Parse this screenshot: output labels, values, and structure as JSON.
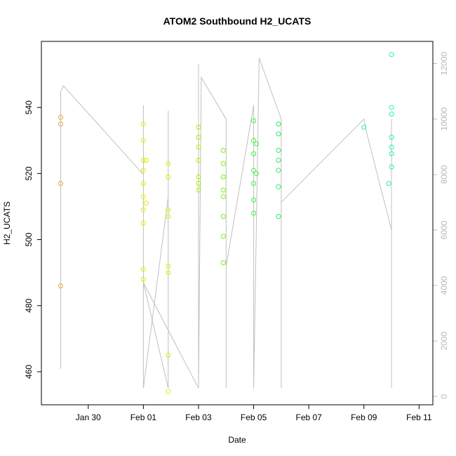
{
  "chart_data": {
    "type": "scatter",
    "title": "ATOM2 Southbound H2_UCATS",
    "xlabel": "Date",
    "ylabel": "H2_UCATS",
    "x_ticks": [
      {
        "label": "Jan 30",
        "day": 30
      },
      {
        "label": "Feb 01",
        "day": 32
      },
      {
        "label": "Feb 03",
        "day": 34
      },
      {
        "label": "Feb 05",
        "day": 36
      },
      {
        "label": "Feb 07",
        "day": 38
      },
      {
        "label": "Feb 09",
        "day": 40
      },
      {
        "label": "Feb 11",
        "day": 42
      }
    ],
    "x_unit": "day of year 2017 (Jan 30 = 30)",
    "xlim": [
      28.3,
      42.5
    ],
    "y_ticks": [
      460,
      480,
      500,
      520,
      540
    ],
    "ylim": [
      450,
      560
    ],
    "y2_label": "",
    "y2_ticks": [
      0,
      2000,
      4000,
      6000,
      8000,
      10000,
      12000
    ],
    "y2lim": [
      -300,
      12800
    ],
    "series": [
      {
        "color": "#f0a040",
        "points": [
          [
            29.0,
            537
          ],
          [
            29.0,
            535
          ],
          [
            29.0,
            517
          ],
          [
            29.0,
            486
          ]
        ]
      },
      {
        "color": "#e6e600",
        "points": [
          [
            32.0,
            535
          ],
          [
            32.0,
            530
          ],
          [
            32.0,
            524
          ],
          [
            32.0,
            521
          ],
          [
            32.0,
            517
          ],
          [
            32.0,
            513
          ],
          [
            32.0,
            509
          ],
          [
            32.0,
            505
          ],
          [
            32.0,
            491
          ],
          [
            32.0,
            488
          ],
          [
            32.1,
            524
          ],
          [
            32.1,
            511
          ]
        ]
      },
      {
        "color": "#d4f000",
        "points": [
          [
            32.9,
            523
          ],
          [
            32.9,
            519
          ],
          [
            32.9,
            509
          ],
          [
            32.9,
            507
          ],
          [
            32.9,
            492
          ],
          [
            32.9,
            490
          ],
          [
            32.9,
            465
          ],
          [
            32.9,
            454
          ]
        ]
      },
      {
        "color": "#a8f000",
        "points": [
          [
            34.0,
            534
          ],
          [
            34.0,
            531
          ],
          [
            34.0,
            528
          ],
          [
            34.0,
            524
          ],
          [
            34.0,
            519
          ],
          [
            34.0,
            517
          ],
          [
            34.0,
            515
          ]
        ]
      },
      {
        "color": "#78f000",
        "points": [
          [
            34.9,
            527
          ],
          [
            34.9,
            523
          ],
          [
            34.9,
            519
          ],
          [
            34.9,
            515
          ],
          [
            34.9,
            513
          ],
          [
            34.9,
            507
          ],
          [
            34.9,
            501
          ],
          [
            34.9,
            493
          ]
        ]
      },
      {
        "color": "#40f040",
        "points": [
          [
            36.0,
            536
          ],
          [
            36.0,
            530
          ],
          [
            36.0,
            526
          ],
          [
            36.0,
            521
          ],
          [
            36.0,
            517
          ],
          [
            36.0,
            512
          ],
          [
            36.0,
            508
          ],
          [
            36.1,
            520
          ],
          [
            36.1,
            529
          ]
        ]
      },
      {
        "color": "#20f060",
        "points": [
          [
            36.9,
            535
          ],
          [
            36.9,
            532
          ],
          [
            36.9,
            527
          ],
          [
            36.9,
            524
          ],
          [
            36.9,
            521
          ],
          [
            36.9,
            516
          ],
          [
            36.9,
            507
          ]
        ]
      },
      {
        "color": "#20f0b0",
        "points": [
          [
            41.0,
            556
          ],
          [
            41.0,
            540
          ],
          [
            41.0,
            538
          ],
          [
            41.0,
            531
          ],
          [
            41.0,
            528
          ],
          [
            41.0,
            526
          ],
          [
            41.0,
            522
          ],
          [
            40.9,
            517
          ],
          [
            40.0,
            534
          ]
        ]
      }
    ],
    "altitude_series": {
      "color": "#c0c0c0",
      "points": [
        [
          29.0,
          1000
        ],
        [
          29.0,
          11000
        ],
        [
          29.1,
          11200
        ],
        [
          32.0,
          8000
        ],
        [
          32.0,
          300
        ],
        [
          32.0,
          10500
        ],
        [
          32.0,
          300
        ],
        [
          32.9,
          7200
        ],
        [
          32.9,
          10300
        ],
        [
          32.9,
          300
        ],
        [
          32.0,
          4100
        ],
        [
          34.0,
          300
        ],
        [
          34.0,
          12000
        ],
        [
          34.0,
          300
        ],
        [
          34.1,
          11500
        ],
        [
          35.0,
          10000
        ],
        [
          35.0,
          300
        ],
        [
          35.0,
          4700
        ],
        [
          36.0,
          10500
        ],
        [
          36.0,
          300
        ],
        [
          36.2,
          12200
        ],
        [
          37.0,
          10000
        ],
        [
          37.0,
          300
        ],
        [
          37.0,
          7000
        ],
        [
          40.0,
          10000
        ],
        [
          40.1,
          9500
        ],
        [
          41.0,
          6000
        ],
        [
          41.0,
          300
        ],
        [
          41.0,
          10000
        ]
      ]
    }
  }
}
